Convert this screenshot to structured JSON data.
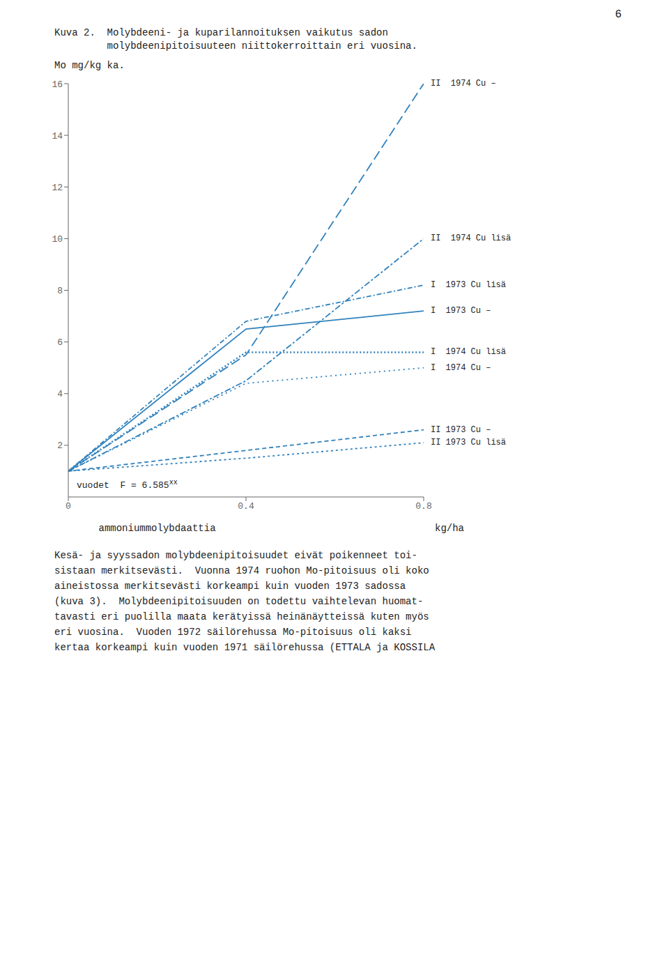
{
  "chart_data": {
    "type": "line",
    "page_number": "6",
    "title": [
      "Kuva 2.  Molybdeeni- ja kuparilannoituksen vaikutus sadon",
      "         molybdeenipitoisuuteen niittokerroittain eri vuosina."
    ],
    "ylabel": "Mo mg/kg ka.",
    "xlabel": "ammoniummolybdaattia",
    "xlabel2": "kg/ha",
    "annotations": [
      {
        "text": "vuodet  F = 6.585",
        "superscript": "xx"
      }
    ],
    "x": [
      0,
      0.4,
      0.8
    ],
    "series": [
      {
        "name": "II  1974 Cu –",
        "line_style": "long_dash",
        "values": [
          1.0,
          5.5,
          16.0
        ]
      },
      {
        "name": "II  1974 Cu lisä",
        "line_style": "dash_dot",
        "values": [
          1.0,
          4.5,
          10.0
        ]
      },
      {
        "name": "I  1973 Cu lisä",
        "line_style": "dash_dot_short",
        "values": [
          1.0,
          6.8,
          8.2
        ]
      },
      {
        "name": "I  1973 Cu –",
        "line_style": "solid",
        "values": [
          1.0,
          6.5,
          7.2
        ]
      },
      {
        "name": "I  1974 Cu lisä",
        "line_style": "dense_dot",
        "values": [
          1.0,
          5.6,
          5.6
        ]
      },
      {
        "name": "I  1974 Cu –",
        "line_style": "dotted",
        "values": [
          1.0,
          4.4,
          5.0
        ]
      },
      {
        "name": "II 1973 Cu –",
        "line_style": "dashed",
        "values": [
          1.0,
          1.8,
          2.6
        ]
      },
      {
        "name": "II 1973 Cu lisä",
        "line_style": "short_dash",
        "values": [
          1.0,
          1.5,
          2.1
        ]
      }
    ],
    "xlim": [
      0,
      0.8
    ],
    "ylim": [
      0,
      16
    ],
    "xticks": [
      0,
      0.4,
      0.8
    ],
    "yticks": [
      2,
      4,
      6,
      8,
      10,
      12,
      14,
      16
    ],
    "grid": false,
    "footer": [
      "Kesä- ja syyssadon molybdeenipitoisuudet eivät poikenneet toi-",
      "sistaan merkitsevästi.  Vuonna 1974 ruohon Mo-pitoisuus oli koko",
      "aineistossa merkitsevästi korkeampi kuin vuoden 1973 sadossa",
      "(kuva 3).  Molybdeenipitoisuuden on todettu vaihtelevan huomat-",
      "tavasti eri puolilla maata kerätyissä heinänäytteissä kuten myös",
      "eri vuosina.  Vuoden 1972 säilörehussa Mo-pitoisuus oli kaksi",
      "kertaa korkeampi kuin vuoden 1971 säilörehussa (ETTALA ja KOSSILA"
    ]
  }
}
